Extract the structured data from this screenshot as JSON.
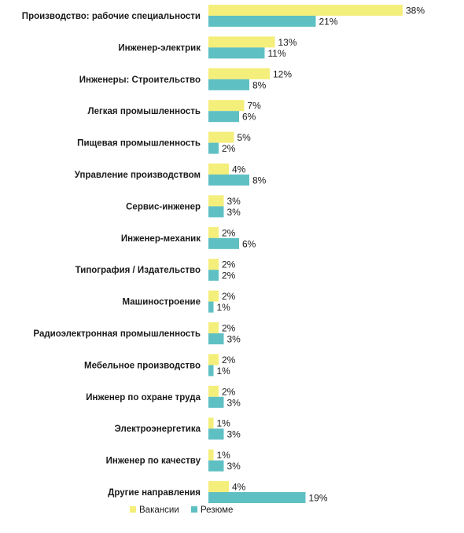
{
  "chart_data": {
    "type": "bar",
    "orientation": "horizontal",
    "categories": [
      "Производство: рабочие специальности",
      "Инженер-электрик",
      "Инженеры: Строительство",
      "Легкая промышленность",
      "Пищевая промышленность",
      "Управление производством",
      "Сервис-инженер",
      "Инженер-механик",
      "Типография / Издательство",
      "Машиностроение",
      "Радиоэлектронная промышленность",
      "Мебельное производство",
      "Инженер по охране труда",
      "Электроэнергетика",
      "Инженер по качеству",
      "Другие направления"
    ],
    "series": [
      {
        "name": "Вакансии",
        "color": "#f4ee7a",
        "values": [
          38,
          13,
          12,
          7,
          5,
          4,
          3,
          2,
          2,
          2,
          2,
          2,
          2,
          1,
          1,
          4
        ],
        "labels": [
          "38%",
          "13%",
          "12%",
          "7%",
          "5%",
          "4%",
          "3%",
          "2%",
          "2%",
          "2%",
          "2%",
          "2%",
          "2%",
          "1%",
          "1%",
          "4%"
        ]
      },
      {
        "name": "Резюме",
        "color": "#5fc0c4",
        "values": [
          21,
          11,
          8,
          6,
          2,
          8,
          3,
          6,
          2,
          1,
          3,
          1,
          3,
          3,
          3,
          19
        ],
        "labels": [
          "21%",
          "11%",
          "8%",
          "6%",
          "2%",
          "8%",
          "3%",
          "6%",
          "2%",
          "1%",
          "3%",
          "1%",
          "3%",
          "3%",
          "3%",
          "19%"
        ]
      }
    ],
    "value_unit": "%",
    "grid": false,
    "legend_position": "bottom-left"
  }
}
